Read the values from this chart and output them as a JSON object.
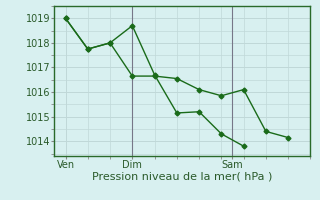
{
  "xlabel": "Pression niveau de la mer( hPa )",
  "bg_color": "#d8f0f0",
  "grid_color": "#c0d8d8",
  "line_color": "#1a6b1a",
  "line1_x": [
    0,
    1,
    2,
    3,
    4,
    5,
    6,
    7,
    8
  ],
  "line1_y": [
    1019.0,
    1017.75,
    1018.0,
    1018.7,
    1016.7,
    1015.15,
    1015.2,
    1014.3,
    1013.8
  ],
  "line2_x": [
    0,
    1,
    2,
    3,
    4,
    5,
    6,
    7,
    8,
    9,
    10
  ],
  "line2_y": [
    1019.0,
    1017.75,
    1018.0,
    1016.65,
    1016.65,
    1016.55,
    1016.1,
    1015.85,
    1016.1,
    1014.4,
    1014.15
  ],
  "vline_x": [
    3.0,
    7.5
  ],
  "xtick_pos": [
    0,
    3.0,
    7.5
  ],
  "xticklabels": [
    "Ven",
    "Dim",
    "Sam"
  ],
  "yticks": [
    1014,
    1015,
    1016,
    1017,
    1018,
    1019
  ],
  "ylim": [
    1013.4,
    1019.5
  ],
  "xlim": [
    -0.5,
    11.0
  ]
}
